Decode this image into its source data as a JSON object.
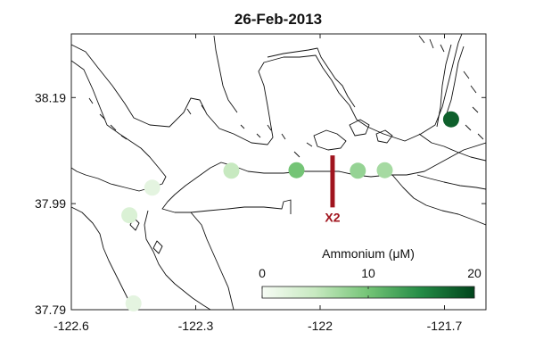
{
  "title": "26-Feb-2013",
  "chart_data": {
    "type": "map-scatter",
    "title": "26-Feb-2013",
    "xlim": [
      -122.6,
      -121.6
    ],
    "ylim": [
      37.79,
      38.31
    ],
    "xticks": [
      -122.6,
      -122.3,
      -122.0,
      -121.7
    ],
    "xtick_labels": [
      "-122.6",
      "-122.3",
      "-122",
      "-121.7"
    ],
    "yticks": [
      37.79,
      37.99,
      38.19
    ],
    "ytick_labels": [
      "37.79",
      "37.99",
      "38.19"
    ],
    "grid": false,
    "stations": [
      {
        "lon": -122.45,
        "lat": 37.802,
        "value": 2
      },
      {
        "lon": -122.46,
        "lat": 37.968,
        "value": 3
      },
      {
        "lon": -122.405,
        "lat": 38.02,
        "value": 2
      },
      {
        "lon": -122.214,
        "lat": 38.052,
        "value": 5
      },
      {
        "lon": -122.057,
        "lat": 38.053,
        "value": 10
      },
      {
        "lon": -121.909,
        "lat": 38.052,
        "value": 8
      },
      {
        "lon": -121.844,
        "lat": 38.053,
        "value": 7
      },
      {
        "lon": -121.684,
        "lat": 38.149,
        "value": 18
      }
    ],
    "marker": {
      "label": "X2",
      "lon": -121.97,
      "lat_from": 38.081,
      "lat_to": 37.983,
      "color": "#a0141e"
    },
    "colorbar": {
      "label": "Ammonium (μM)",
      "min": 0,
      "max": 20,
      "ticks": [
        0,
        10,
        20
      ],
      "tick_labels": [
        "0",
        "10",
        "20"
      ],
      "colors": [
        "#f7fcf5",
        "#c7e9c0",
        "#74c476",
        "#238b45",
        "#00441b"
      ],
      "placement": "bottom-right"
    }
  }
}
